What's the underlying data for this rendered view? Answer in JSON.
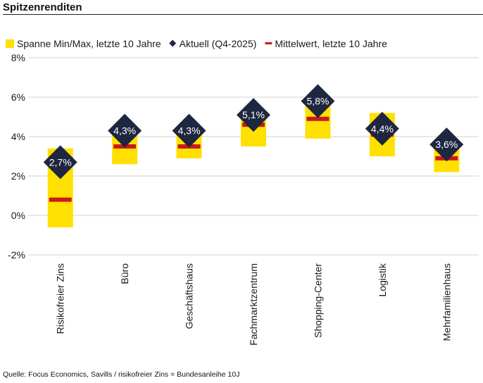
{
  "header": {
    "title": "Spitzenrenditen"
  },
  "footer": {
    "source": "Quelle: Focus Economics, Savills / risikofreier Zins = Bundesanleihe 10J"
  },
  "colors": {
    "range": "#FFE000",
    "current": "#1F2640",
    "mean": "#C8191E",
    "grid": "#D0D0D0",
    "text": "#1A1A1A"
  },
  "chart_data": {
    "type": "range-bar",
    "title": "Spitzenrenditen",
    "ylabel": "",
    "xlabel": "",
    "ylim": [
      -2,
      8
    ],
    "yticks": [
      -2,
      0,
      2,
      4,
      6,
      8
    ],
    "ytick_labels": [
      "-2%",
      "0%",
      "2%",
      "4%",
      "6%",
      "8%"
    ],
    "grid": true,
    "legend_position": "top",
    "legend": [
      {
        "key": "range",
        "label": "Spanne Min/Max, letzte 10 Jahre"
      },
      {
        "key": "current",
        "label": "Aktuell (Q4-2025)"
      },
      {
        "key": "mean",
        "label": "Mittelwert, letzte 10 Jahre"
      }
    ],
    "categories": [
      "Risikofreier Zins",
      "Büro",
      "Geschäftshaus",
      "Fachmarktzentrum",
      "Shopping-Center",
      "Logistik",
      "Mehrfamilienhaus"
    ],
    "min": [
      -0.6,
      2.6,
      2.9,
      3.5,
      3.9,
      3.0,
      2.2
    ],
    "max": [
      3.4,
      4.3,
      4.3,
      5.1,
      5.8,
      5.2,
      3.6
    ],
    "mean": [
      0.8,
      3.5,
      3.5,
      4.6,
      4.9,
      4.1,
      2.9
    ],
    "current": [
      2.7,
      4.3,
      4.3,
      5.1,
      5.8,
      4.4,
      3.6
    ],
    "current_labels": [
      "2,7%",
      "4,3%",
      "4,3%",
      "5,1%",
      "5,8%",
      "4,4%",
      "3,6%"
    ]
  }
}
